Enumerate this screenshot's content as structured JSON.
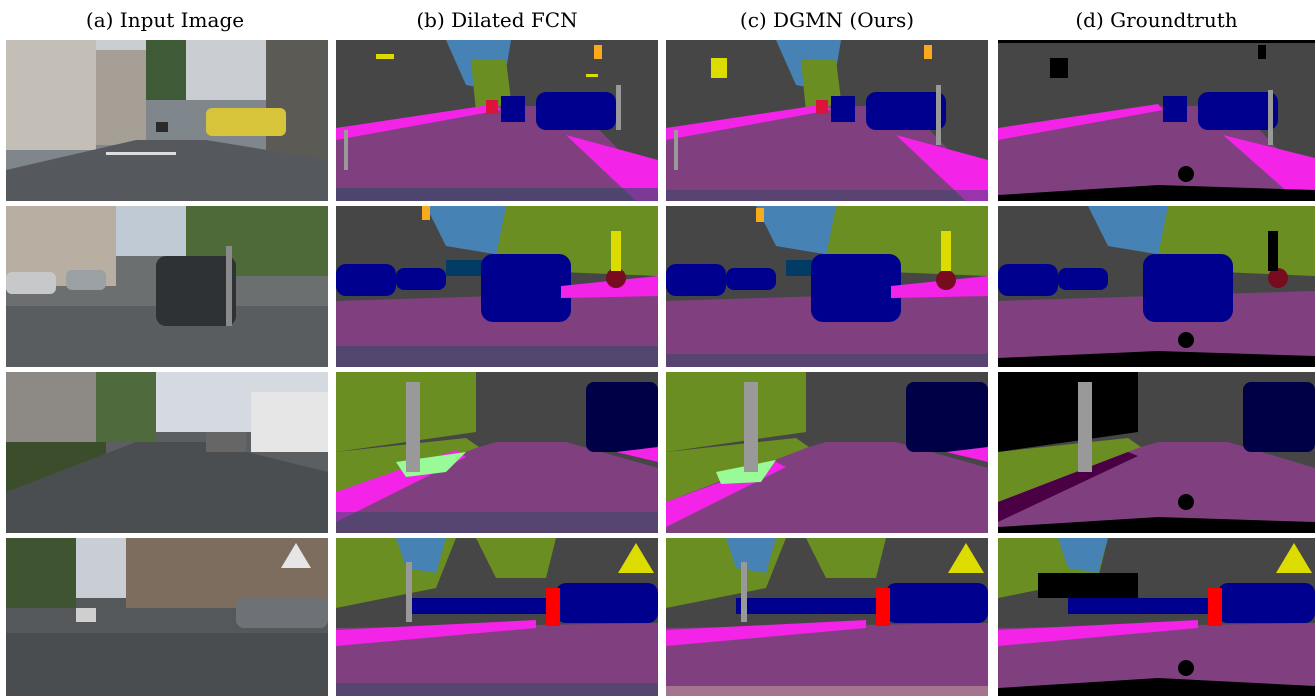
{
  "columns": [
    {
      "label": "(a) Input Image"
    },
    {
      "label": "(b) Dilated FCN"
    },
    {
      "label": "(c) DGMN (Ours)"
    },
    {
      "label": "(d) Groundtruth"
    }
  ],
  "rows": 4,
  "colors": {
    "road": "#804080",
    "sidewalk": "#f423e8",
    "building": "#464646",
    "vegetation": "#6b8e23",
    "sky": "#4682b4",
    "car": "#00008e",
    "truck": "#000046",
    "traffic_sign": "#dcdc00",
    "traffic_light": "#faaa1e",
    "pole": "#999999",
    "person": "#dc143c",
    "rider": "#ff0000",
    "bicycle": "#770b20",
    "bus": "#003c64",
    "terrain": "#98fb98",
    "wall": "#66669c",
    "fence": "#be9999",
    "ignore": "#000000"
  }
}
